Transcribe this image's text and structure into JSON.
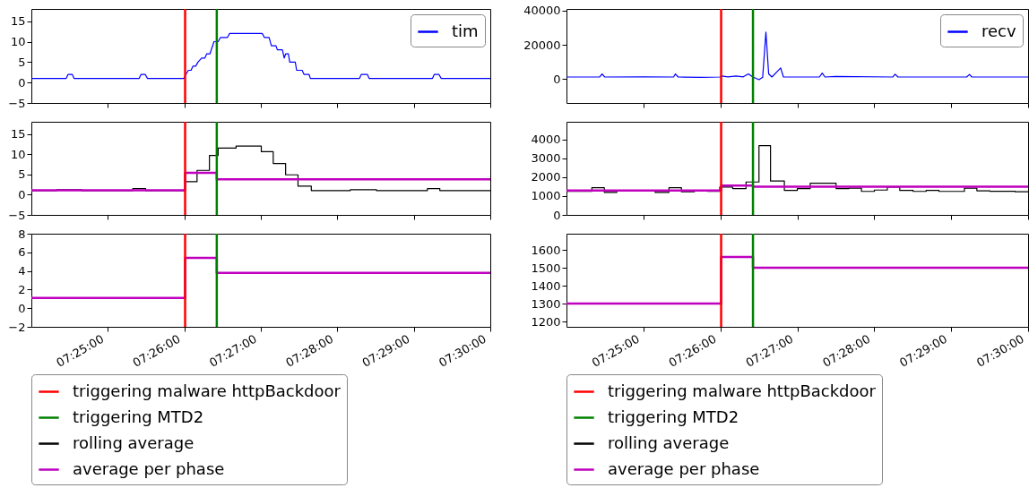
{
  "chart_data": [
    {
      "type": "line",
      "xlim": [
        7.4,
        7.5
      ],
      "ylim": [
        -5,
        18
      ],
      "yticks": [
        -5,
        0,
        5,
        10,
        15
      ],
      "tick_labels": "y",
      "legend": "top right",
      "xticks": [
        {
          "value": 7.41667,
          "label": null
        },
        {
          "value": 7.43333,
          "label": null
        },
        {
          "value": 7.45,
          "label": null
        },
        {
          "value": 7.46667,
          "label": null
        },
        {
          "value": 7.48333,
          "label": null
        },
        {
          "value": 7.5,
          "label": null
        }
      ],
      "ref_lines": [
        {
          "axis": "x",
          "value": 7.4335,
          "color": "#ff0000"
        },
        {
          "axis": "x",
          "value": 7.4404,
          "color": "#008000"
        }
      ],
      "series": [
        {
          "name": "tim",
          "color": "#0000ff",
          "x": [
            7.4,
            7.4076,
            7.408,
            7.4089,
            7.4093,
            7.4235,
            7.4239,
            7.4248,
            7.4253,
            7.4332,
            7.4337,
            7.4342,
            7.4348,
            7.4352,
            7.4358,
            7.4363,
            7.4371,
            7.4378,
            7.4382,
            7.4389,
            7.4398,
            7.4407,
            7.4412,
            7.4427,
            7.4432,
            7.4503,
            7.4508,
            7.4518,
            7.4523,
            7.4533,
            7.4536,
            7.4547,
            7.4551,
            7.4554,
            7.456,
            7.4563,
            7.4575,
            7.4578,
            7.459,
            7.4594,
            7.4605,
            7.4608,
            7.4715,
            7.4719,
            7.4732,
            7.4736,
            7.4874,
            7.4878,
            7.4888,
            7.4893,
            7.5
          ],
          "values": [
            1,
            1,
            2,
            2,
            1,
            1,
            2,
            2,
            1,
            1,
            2,
            3,
            3,
            4,
            4,
            5,
            6,
            6,
            7,
            7,
            10,
            10,
            11,
            11,
            12,
            12,
            11,
            11,
            9,
            9,
            8,
            8,
            6,
            7,
            7,
            5,
            5,
            3,
            3,
            2,
            2,
            1,
            1,
            2,
            2,
            1,
            1,
            2,
            2,
            1,
            1
          ]
        }
      ]
    },
    {
      "type": "step",
      "xlim": [
        7.4,
        7.5
      ],
      "ylim": [
        -5,
        18
      ],
      "yticks": [
        -5,
        0,
        5,
        10,
        15
      ],
      "tick_labels": "y",
      "legend": "bottom",
      "xticks": [
        {
          "value": 7.41667,
          "label": null
        },
        {
          "value": 7.43333,
          "label": null
        },
        {
          "value": 7.45,
          "label": null
        },
        {
          "value": 7.46667,
          "label": null
        },
        {
          "value": 7.48333,
          "label": null
        },
        {
          "value": 7.5,
          "label": null
        }
      ],
      "ref_lines": [
        {
          "axis": "x",
          "value": 7.4335,
          "label": "triggering malware httpBackdoor",
          "color": "#ff0000"
        },
        {
          "axis": "x",
          "value": 7.4404,
          "label": "triggering MTD2",
          "color": "#008000"
        }
      ],
      "series": [
        {
          "name": "rolling average",
          "color": "#000000",
          "x": [
            7.4,
            7.4055,
            7.411,
            7.4221,
            7.4249,
            7.4335,
            7.4361,
            7.4388,
            7.4407,
            7.4446,
            7.4501,
            7.4527,
            7.4554,
            7.4581,
            7.461,
            7.4695,
            7.4752,
            7.4863,
            7.489,
            7.5
          ],
          "values": [
            1.0,
            1.2,
            1.0,
            1.5,
            1.0,
            3.2,
            6.0,
            9.7,
            11.5,
            12.0,
            10.6,
            7.7,
            4.9,
            2.1,
            1.0,
            1.2,
            1.0,
            1.5,
            1.0,
            1.0
          ]
        },
        {
          "name": "average per phase",
          "color": "#bf00bf",
          "x": [
            7.4,
            7.4335,
            7.4404,
            7.5
          ],
          "values": [
            1.1,
            5.4,
            3.8,
            3.8
          ]
        }
      ]
    },
    {
      "type": "step",
      "xlim": [
        7.4,
        7.5
      ],
      "ylim": [
        -2,
        8
      ],
      "yticks": [
        -2,
        0,
        2,
        4,
        6,
        8
      ],
      "xticks": [
        {
          "value": 7.41667,
          "label": "07:25:00"
        },
        {
          "value": 7.43333,
          "label": "07:26:00"
        },
        {
          "value": 7.45,
          "label": "07:27:00"
        },
        {
          "value": 7.46667,
          "label": "07:28:00"
        },
        {
          "value": 7.48333,
          "label": "07:29:00"
        },
        {
          "value": 7.5,
          "label": "07:30:00"
        }
      ],
      "ref_lines": [
        {
          "axis": "x",
          "value": 7.4335,
          "color": "#ff0000"
        },
        {
          "axis": "x",
          "value": 7.4404,
          "color": "#008000"
        }
      ],
      "series": [
        {
          "color": "#bf00bf",
          "x": [
            7.4,
            7.4335,
            7.4404,
            7.5
          ],
          "values": [
            1.1,
            5.4,
            3.8,
            3.8
          ]
        }
      ]
    },
    {
      "type": "line",
      "xlim": [
        7.4,
        7.5
      ],
      "ylim": [
        -14000,
        41000
      ],
      "yticks": [
        0,
        20000,
        40000
      ],
      "tick_labels": "y",
      "legend": "top right",
      "xticks": [
        {
          "value": 7.41667,
          "label": null
        },
        {
          "value": 7.43333,
          "label": null
        },
        {
          "value": 7.45,
          "label": null
        },
        {
          "value": 7.46667,
          "label": null
        },
        {
          "value": 7.48333,
          "label": null
        },
        {
          "value": 7.5,
          "label": null
        }
      ],
      "ref_lines": [
        {
          "axis": "x",
          "value": 7.4335,
          "color": "#ff0000"
        },
        {
          "axis": "x",
          "value": 7.4404,
          "color": "#008000"
        }
      ],
      "series": [
        {
          "name": "recv",
          "color": "#0000ff",
          "x": [
            7.4,
            7.4072,
            7.4077,
            7.4083,
            7.4167,
            7.4232,
            7.4236,
            7.4242,
            7.4292,
            7.4332,
            7.4337,
            7.435,
            7.4367,
            7.4383,
            7.4394,
            7.4403,
            7.4417,
            7.4425,
            7.4432,
            7.4438,
            7.4445,
            7.4464,
            7.447,
            7.4548,
            7.4554,
            7.456,
            7.4583,
            7.4707,
            7.4712,
            7.4718,
            7.4867,
            7.4873,
            7.4878,
            7.5
          ],
          "values": [
            1200,
            1200,
            3000,
            1200,
            1300,
            1200,
            3000,
            1200,
            1000,
            1200,
            1800,
            1300,
            1800,
            1300,
            3000,
            1300,
            -400,
            1000,
            27500,
            3000,
            1200,
            6500,
            1200,
            1200,
            3500,
            1200,
            1500,
            1200,
            2800,
            1200,
            1200,
            2700,
            1200,
            1200
          ]
        }
      ]
    },
    {
      "type": "step",
      "xlim": [
        7.4,
        7.5
      ],
      "ylim": [
        0,
        4950
      ],
      "yticks": [
        0,
        1000,
        2000,
        3000,
        4000
      ],
      "tick_labels": "y",
      "legend": "bottom",
      "xticks": [
        {
          "value": 7.41667,
          "label": null
        },
        {
          "value": 7.43333,
          "label": null
        },
        {
          "value": 7.45,
          "label": null
        },
        {
          "value": 7.46667,
          "label": null
        },
        {
          "value": 7.48333,
          "label": null
        },
        {
          "value": 7.5,
          "label": null
        }
      ],
      "ref_lines": [
        {
          "axis": "x",
          "value": 7.4335,
          "label": "triggering malware httpBackdoor",
          "color": "#ff0000"
        },
        {
          "axis": "x",
          "value": 7.4404,
          "label": "triggering MTD2",
          "color": "#008000"
        }
      ],
      "series": [
        {
          "name": "rolling average",
          "color": "#000000",
          "x": [
            7.4,
            7.4055,
            7.4082,
            7.4109,
            7.4192,
            7.4222,
            7.4249,
            7.4277,
            7.4306,
            7.4332,
            7.436,
            7.4389,
            7.4417,
            7.4442,
            7.4472,
            7.45,
            7.4528,
            7.4584,
            7.4612,
            7.4639,
            7.4667,
            7.4695,
            7.4722,
            7.4751,
            7.4779,
            7.4807,
            7.4862,
            7.4889,
            7.4917,
            7.4972,
            7.5
          ],
          "values": [
            1250,
            1450,
            1200,
            1280,
            1200,
            1450,
            1230,
            1300,
            1250,
            1480,
            1400,
            1750,
            3680,
            1800,
            1300,
            1400,
            1680,
            1400,
            1420,
            1250,
            1320,
            1480,
            1300,
            1250,
            1300,
            1250,
            1420,
            1280,
            1260,
            1230,
            1230
          ]
        },
        {
          "name": "average per phase",
          "color": "#bf00bf",
          "x": [
            7.4,
            7.4335,
            7.4404,
            7.5
          ],
          "values": [
            1300,
            1560,
            1500,
            1500
          ]
        }
      ]
    },
    {
      "type": "step",
      "xlim": [
        7.4,
        7.5
      ],
      "ylim": [
        1170,
        1690
      ],
      "yticks": [
        1200,
        1300,
        1400,
        1500,
        1600
      ],
      "xticks": [
        {
          "value": 7.41667,
          "label": "07:25:00"
        },
        {
          "value": 7.43333,
          "label": "07:26:00"
        },
        {
          "value": 7.45,
          "label": "07:27:00"
        },
        {
          "value": 7.46667,
          "label": "07:28:00"
        },
        {
          "value": 7.48333,
          "label": "07:29:00"
        },
        {
          "value": 7.5,
          "label": "07:30:00"
        }
      ],
      "ref_lines": [
        {
          "axis": "x",
          "value": 7.4335,
          "color": "#ff0000"
        },
        {
          "axis": "x",
          "value": 7.4404,
          "color": "#008000"
        }
      ],
      "series": [
        {
          "color": "#bf00bf",
          "x": [
            7.4,
            7.4335,
            7.4404,
            7.5
          ],
          "values": [
            1300,
            1560,
            1500,
            1500
          ]
        }
      ]
    }
  ]
}
